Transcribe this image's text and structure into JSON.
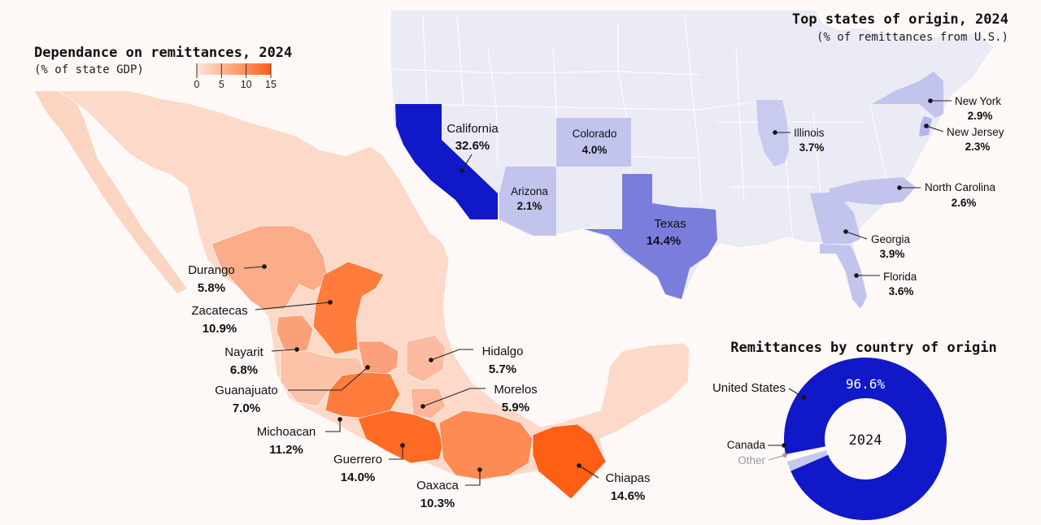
{
  "colors": {
    "background": "#fef8f6",
    "us_base": "#ebebf5",
    "us_high": "#1018c8",
    "mx_low": "#fcd9c8",
    "mx_high": "#ff5f14",
    "other": "#9c9c9c"
  },
  "mexico": {
    "title": "Dependance on remittances, 2024",
    "subtitle": "(% of state GDP)",
    "legend_ticks": [
      "0",
      "5",
      "10",
      "15"
    ],
    "legend_max": 15,
    "states": [
      {
        "name": "Durango",
        "value": "5.8%",
        "num": 5.8
      },
      {
        "name": "Zacatecas",
        "value": "10.9%",
        "num": 10.9
      },
      {
        "name": "Nayarit",
        "value": "6.8%",
        "num": 6.8
      },
      {
        "name": "Guanajuato",
        "value": "7.0%",
        "num": 7.0
      },
      {
        "name": "Michoacan",
        "value": "11.2%",
        "num": 11.2
      },
      {
        "name": "Guerrero",
        "value": "14.0%",
        "num": 14.0
      },
      {
        "name": "Oaxaca",
        "value": "10.3%",
        "num": 10.3
      },
      {
        "name": "Chiapas",
        "value": "14.6%",
        "num": 14.6
      },
      {
        "name": "Hidalgo",
        "value": "5.7%",
        "num": 5.7
      },
      {
        "name": "Morelos",
        "value": "5.9%",
        "num": 5.9
      }
    ]
  },
  "us": {
    "title": "Top states of origin, 2024",
    "subtitle": "(% of remittances from U.S.)",
    "states": [
      {
        "name": "California",
        "value": "32.6%",
        "num": 32.6
      },
      {
        "name": "Texas",
        "value": "14.4%",
        "num": 14.4
      },
      {
        "name": "Colorado",
        "value": "4.0%",
        "num": 4.0
      },
      {
        "name": "Arizona",
        "value": "2.1%",
        "num": 2.1
      },
      {
        "name": "Illinois",
        "value": "3.7%",
        "num": 3.7
      },
      {
        "name": "New York",
        "value": "2.9%",
        "num": 2.9
      },
      {
        "name": "New Jersey",
        "value": "2.3%",
        "num": 2.3
      },
      {
        "name": "North Carolina",
        "value": "2.6%",
        "num": 2.6
      },
      {
        "name": "Georgia",
        "value": "3.9%",
        "num": 3.9
      },
      {
        "name": "Florida",
        "value": "3.6%",
        "num": 3.6
      }
    ]
  },
  "donut": {
    "title": "Remittances by country of origin",
    "center_label": "2024",
    "segments": [
      {
        "name": "United States",
        "value": 96.6,
        "label": "96.6%",
        "color": "#1018c8"
      },
      {
        "name": "Canada",
        "value": 2.0,
        "color": "#c5c8ef"
      },
      {
        "name": "Other",
        "value": 1.4,
        "color": "#ffffff"
      }
    ]
  }
}
